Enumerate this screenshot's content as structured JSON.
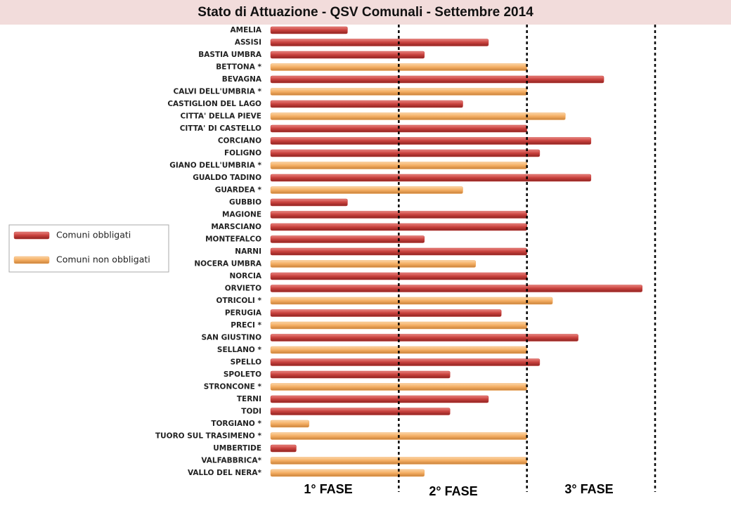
{
  "chart_data": {
    "type": "hbar",
    "title": "Stato di Attuazione  - QSV Comunali - Settembre 2014",
    "categories": [
      "AMELIA",
      "ASSISI",
      "BASTIA UMBRA",
      "BETTONA *",
      "BEVAGNA",
      "CALVI DELL'UMBRIA *",
      "CASTIGLION DEL LAGO",
      "CITTA' DELLA PIEVE",
      "CITTA' DI CASTELLO",
      "CORCIANO",
      "FOLIGNO",
      "GIANO DELL'UMBRIA *",
      "GUALDO TADINO",
      "GUARDEA *",
      "GUBBIO",
      "MAGIONE",
      "MARSCIANO",
      "MONTEFALCO",
      "NARNI",
      "NOCERA  UMBRA",
      "NORCIA",
      "ORVIETO",
      "OTRICOLI *",
      "PERUGIA",
      "PRECI *",
      "SAN GIUSTINO",
      "SELLANO *",
      "SPELLO",
      "SPOLETO",
      "STRONCONE *",
      "TERNI",
      "TODI",
      "TORGIANO *",
      "TUORO SUL TRASIMENO *",
      "UMBERTIDE",
      "VALFABBRICA*",
      "VALLO DEL NERA*"
    ],
    "series": [
      {
        "name": "Comuni obbligati",
        "color": "#c8403c",
        "values": [
          0.6,
          1.7,
          1.2,
          null,
          2.6,
          null,
          1.5,
          null,
          2,
          2.5,
          2.1,
          null,
          2.5,
          null,
          0.6,
          2,
          2,
          1.2,
          2,
          null,
          2,
          2.9,
          null,
          1.8,
          null,
          2.4,
          null,
          2.1,
          1.4,
          null,
          1.7,
          1.4,
          null,
          null,
          0.2,
          null,
          null
        ]
      },
      {
        "name": "Comuni non obbligati",
        "color": "#f4ad62",
        "values": [
          null,
          null,
          null,
          2,
          null,
          2,
          null,
          2.3,
          null,
          null,
          null,
          2,
          null,
          1.5,
          null,
          null,
          null,
          null,
          null,
          1.6,
          null,
          null,
          2.2,
          null,
          2,
          null,
          2,
          null,
          null,
          2,
          null,
          null,
          0.3,
          2,
          null,
          2,
          1.2
        ]
      }
    ],
    "xlim": [
      0,
      3
    ],
    "phase_boundaries": [
      1,
      2,
      3
    ],
    "phases": [
      "1° FASE",
      "2° FASE",
      "3° FASE"
    ]
  }
}
